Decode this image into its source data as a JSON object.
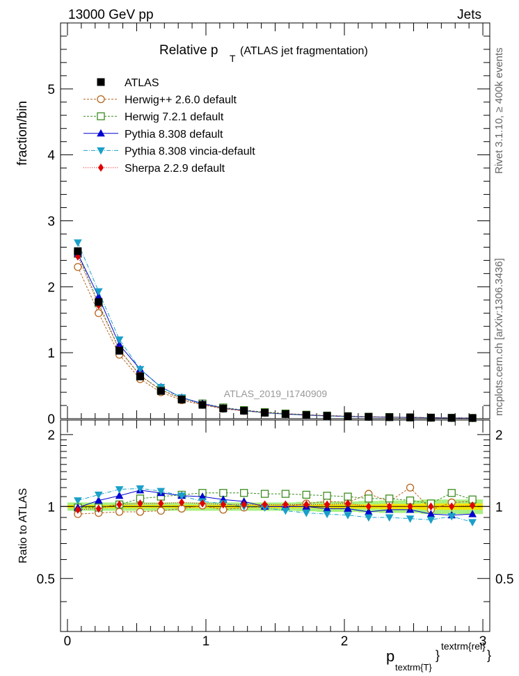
{
  "header": {
    "left": "13000 GeV pp",
    "right": "Jets"
  },
  "side_labels": {
    "rivet": "Rivet 3.1.10, ≥ 400k events",
    "mcplots": "mcplots.cern.ch [arXiv:1306.3436]"
  },
  "watermark": "ATLAS_2019_I1740909",
  "colors": {
    "ATLAS": "#000000",
    "Herwig++ 2.6.0 default": "#b5651d",
    "Herwig 7.2.1 default": "#3b8c1e",
    "Pythia 8.308 default": "#0000d0",
    "Pythia 8.308 vincia-default": "#1aa0c8",
    "Sherpa 2.2.9 default": "#e00000",
    "band_inner": "#f5e600",
    "band_outer": "#a8f080"
  },
  "chart_data": [
    {
      "type": "line",
      "title_main": "Relative p",
      "title_sub": "T",
      "title_rest": "(ATLAS jet fragmentation)",
      "xlabel_main": "p",
      "xlabel_sub": "textrm{T}",
      "xlabel_sup": "textrm{rel}",
      "ylabel": "fraction/bin",
      "xlim": [
        -0.05,
        3.05
      ],
      "ylim": [
        0,
        6.0
      ],
      "yticks": [
        "0",
        "1",
        "2",
        "3",
        "4",
        "5"
      ],
      "yticks_values": [
        0,
        1,
        2,
        3,
        4,
        5
      ],
      "x": [
        0.075,
        0.225,
        0.375,
        0.525,
        0.675,
        0.825,
        0.975,
        1.125,
        1.275,
        1.425,
        1.575,
        1.725,
        1.875,
        2.025,
        2.175,
        2.325,
        2.475,
        2.625,
        2.775,
        2.925
      ],
      "series": [
        {
          "name": "ATLAS",
          "marker": "square-filled",
          "values": [
            2.54,
            1.77,
            1.03,
            0.64,
            0.42,
            0.29,
            0.21,
            0.155,
            0.12,
            0.09,
            0.07,
            0.055,
            0.043,
            0.035,
            0.028,
            0.023,
            0.019,
            0.015,
            0.012,
            0.01
          ]
        },
        {
          "name": "Herwig++ 2.6.0 default",
          "marker": "circle-open",
          "dash": "3,2",
          "values": [
            2.3,
            1.6,
            0.97,
            0.6,
            0.4,
            0.28,
            0.21,
            0.15,
            0.118,
            0.089,
            0.07,
            0.056,
            0.044,
            0.036,
            0.029,
            0.024,
            0.02,
            0.015,
            0.012,
            0.01
          ]
        },
        {
          "name": "Herwig 7.2.1 default",
          "marker": "square-open",
          "dash": "3,2",
          "values": [
            2.5,
            1.75,
            1.05,
            0.65,
            0.44,
            0.31,
            0.23,
            0.17,
            0.13,
            0.1,
            0.078,
            0.06,
            0.047,
            0.038,
            0.03,
            0.025,
            0.02,
            0.016,
            0.013,
            0.011
          ]
        },
        {
          "name": "Pythia 8.308 default",
          "marker": "triangle-up",
          "dash": "",
          "values": [
            2.5,
            1.85,
            1.12,
            0.75,
            0.48,
            0.32,
            0.23,
            0.16,
            0.125,
            0.09,
            0.07,
            0.055,
            0.042,
            0.034,
            0.026,
            0.022,
            0.018,
            0.014,
            0.011,
            0.009
          ]
        },
        {
          "name": "Pythia 8.308 vincia-default",
          "marker": "triangle-down",
          "dash": "6,2,1,2",
          "values": [
            2.67,
            1.93,
            1.2,
            0.75,
            0.48,
            0.32,
            0.22,
            0.16,
            0.12,
            0.09,
            0.067,
            0.051,
            0.04,
            0.032,
            0.025,
            0.021,
            0.017,
            0.013,
            0.011,
            0.009
          ]
        },
        {
          "name": "Sherpa 2.2.9 default",
          "marker": "diamond",
          "dash": "1,2",
          "values": [
            2.46,
            1.72,
            1.04,
            0.66,
            0.43,
            0.3,
            0.215,
            0.158,
            0.122,
            0.092,
            0.072,
            0.056,
            0.044,
            0.036,
            0.028,
            0.023,
            0.019,
            0.015,
            0.012,
            0.01
          ]
        }
      ]
    },
    {
      "type": "line",
      "title": "",
      "ylabel": "Ratio to ATLAS",
      "xlabel": "",
      "xlim": [
        -0.05,
        3.05
      ],
      "ylim": [
        0.3,
        2.3
      ],
      "yticks": [
        "0.5",
        "1",
        "2"
      ],
      "yticks_values": [
        0.5,
        1,
        2
      ],
      "xticks": [
        "0",
        "1",
        "2",
        "3"
      ],
      "xticks_values": [
        0,
        1,
        2,
        3
      ],
      "x": [
        0.075,
        0.225,
        0.375,
        0.525,
        0.675,
        0.825,
        0.975,
        1.125,
        1.275,
        1.425,
        1.575,
        1.725,
        1.875,
        2.025,
        2.175,
        2.325,
        2.475,
        2.625,
        2.775,
        2.925
      ],
      "band_inner_halfwidth": [
        0.015,
        0.015,
        0.015,
        0.015,
        0.015,
        0.015,
        0.015,
        0.015,
        0.015,
        0.015,
        0.015,
        0.015,
        0.02,
        0.02,
        0.02,
        0.025,
        0.025,
        0.03,
        0.03,
        0.03
      ],
      "band_outer_halfwidth": [
        0.04,
        0.04,
        0.04,
        0.04,
        0.04,
        0.04,
        0.04,
        0.04,
        0.04,
        0.04,
        0.04,
        0.045,
        0.05,
        0.05,
        0.055,
        0.06,
        0.06,
        0.07,
        0.07,
        0.07
      ],
      "series": [
        {
          "name": "Herwig++ 2.6.0 default",
          "marker": "circle-open",
          "dash": "3,2",
          "values": [
            0.93,
            0.94,
            0.95,
            0.95,
            0.96,
            0.98,
            1.01,
            0.97,
            0.99,
            1.0,
            1.0,
            1.03,
            1.05,
            1.04,
            1.13,
            1.05,
            1.2,
            0.97,
            1.04,
            1.05
          ]
        },
        {
          "name": "Herwig 7.2.1 default",
          "marker": "square-open",
          "dash": "3,2",
          "values": [
            0.99,
            0.99,
            1.02,
            1.08,
            1.1,
            1.12,
            1.14,
            1.14,
            1.14,
            1.13,
            1.13,
            1.12,
            1.11,
            1.1,
            1.08,
            1.08,
            1.06,
            1.03,
            1.14,
            1.07
          ]
        },
        {
          "name": "Pythia 8.308 default",
          "marker": "triangle-up",
          "dash": "",
          "values": [
            0.99,
            1.06,
            1.11,
            1.17,
            1.14,
            1.11,
            1.1,
            1.07,
            1.05,
            1.0,
            1.0,
            1.0,
            0.98,
            0.98,
            0.95,
            0.97,
            0.97,
            0.93,
            0.92,
            0.93
          ]
        },
        {
          "name": "Pythia 8.308 vincia-default",
          "marker": "triangle-down",
          "dash": "6,2,1,2",
          "values": [
            1.06,
            1.12,
            1.18,
            1.19,
            1.16,
            1.11,
            1.05,
            1.03,
            1.0,
            0.99,
            0.96,
            0.94,
            0.93,
            0.92,
            0.9,
            0.9,
            0.89,
            0.88,
            0.91,
            0.86
          ]
        },
        {
          "name": "Sherpa 2.2.9 default",
          "marker": "diamond",
          "dash": "1,2",
          "values": [
            0.97,
            0.98,
            1.02,
            1.03,
            1.03,
            1.04,
            1.03,
            1.02,
            1.02,
            1.02,
            1.02,
            1.02,
            1.02,
            1.03,
            1.0,
            1.0,
            1.0,
            1.0,
            1.0,
            1.01
          ]
        }
      ]
    }
  ]
}
